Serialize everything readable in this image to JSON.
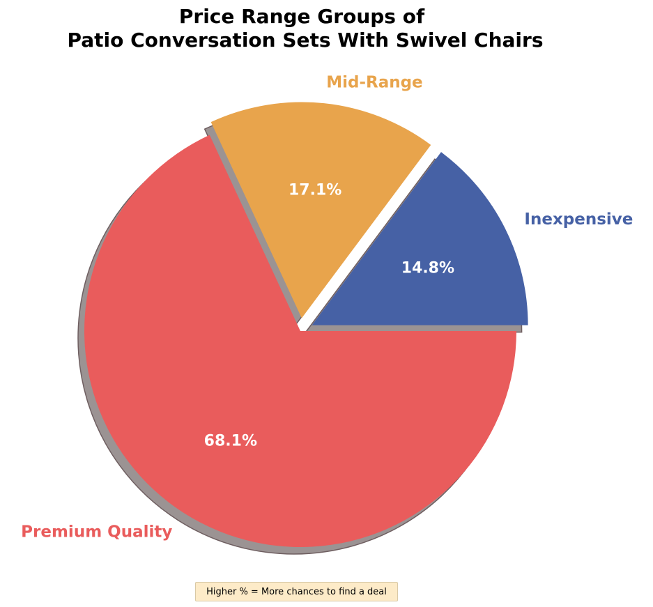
{
  "chart_data": {
    "type": "pie",
    "title_lines": [
      "Price Range Groups of",
      "Patio Conversation Sets With Swivel Chairs"
    ],
    "slices": [
      {
        "label": "Inexpensive",
        "value": 14.8,
        "pct_label": "14.8%",
        "color": "#4661a5",
        "exploded": true
      },
      {
        "label": "Mid-Range",
        "value": 17.1,
        "pct_label": "17.1%",
        "color": "#e8a44c",
        "exploded": true
      },
      {
        "label": "Premium Quality",
        "value": 68.1,
        "pct_label": "68.1%",
        "color": "#e95c5c",
        "exploded": false
      }
    ],
    "start_angle_deg": 0,
    "direction": "counterclockwise",
    "shadow": true,
    "annotation": "Higher % = More chances to find a deal"
  }
}
